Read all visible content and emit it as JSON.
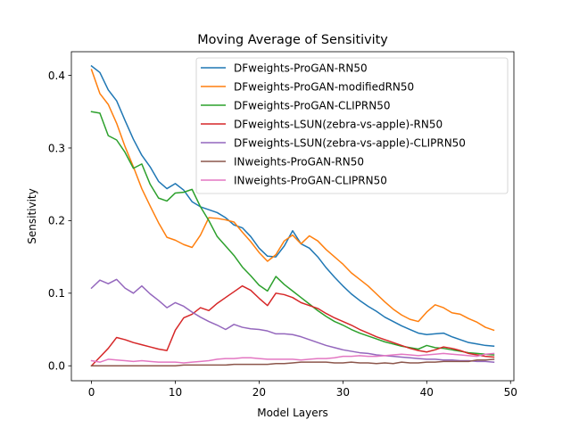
{
  "chart_data": {
    "type": "line",
    "title": "Moving Average of Sensitivity",
    "xlabel": "Model Layers",
    "ylabel": "Sensitivity",
    "xlim": [
      -2.4,
      50.4
    ],
    "ylim": [
      -0.0206,
      0.4326
    ],
    "xticks": [
      0,
      10,
      20,
      30,
      40,
      50
    ],
    "xtick_labels": [
      "0",
      "10",
      "20",
      "30",
      "40",
      "50"
    ],
    "yticks": [
      0.0,
      0.1,
      0.2,
      0.3,
      0.4
    ],
    "ytick_labels": [
      "0.0",
      "0.1",
      "0.2",
      "0.3",
      "0.4"
    ],
    "legend_position": "top-right",
    "grid": false,
    "series": [
      {
        "name": "DFweights-ProGAN-RN50",
        "color": "#1f77b4",
        "x": [
          0,
          1,
          2,
          3,
          4,
          5,
          6,
          7,
          8,
          9,
          10,
          11,
          12,
          13,
          14,
          15,
          16,
          17,
          18,
          19,
          20,
          21,
          22,
          23,
          24,
          25,
          26,
          27,
          28,
          29,
          30,
          31,
          32,
          33,
          34,
          35,
          36,
          37,
          38,
          39,
          40,
          41,
          42,
          43,
          44,
          45,
          46,
          47,
          48
        ],
        "y": [
          0.413,
          0.404,
          0.38,
          0.365,
          0.338,
          0.312,
          0.29,
          0.274,
          0.254,
          0.244,
          0.251,
          0.242,
          0.226,
          0.219,
          0.215,
          0.211,
          0.204,
          0.194,
          0.19,
          0.178,
          0.162,
          0.151,
          0.15,
          0.165,
          0.186,
          0.168,
          0.162,
          0.15,
          0.135,
          0.122,
          0.11,
          0.099,
          0.09,
          0.082,
          0.075,
          0.067,
          0.061,
          0.055,
          0.05,
          0.045,
          0.043,
          0.044,
          0.045,
          0.04,
          0.036,
          0.032,
          0.03,
          0.028,
          0.027
        ]
      },
      {
        "name": "DFweights-ProGAN-modifiedRN50",
        "color": "#ff7f0e",
        "x": [
          0,
          1,
          2,
          3,
          4,
          5,
          6,
          7,
          8,
          9,
          10,
          11,
          12,
          13,
          14,
          15,
          16,
          17,
          18,
          19,
          20,
          21,
          22,
          23,
          24,
          25,
          26,
          27,
          28,
          29,
          30,
          31,
          32,
          33,
          34,
          35,
          36,
          37,
          38,
          39,
          40,
          41,
          42,
          43,
          44,
          45,
          46,
          47,
          48
        ],
        "y": [
          0.408,
          0.375,
          0.36,
          0.334,
          0.302,
          0.274,
          0.244,
          0.22,
          0.197,
          0.177,
          0.173,
          0.167,
          0.163,
          0.18,
          0.204,
          0.203,
          0.201,
          0.198,
          0.184,
          0.171,
          0.156,
          0.144,
          0.153,
          0.172,
          0.18,
          0.168,
          0.179,
          0.172,
          0.16,
          0.15,
          0.14,
          0.128,
          0.119,
          0.11,
          0.099,
          0.088,
          0.078,
          0.07,
          0.064,
          0.061,
          0.074,
          0.084,
          0.08,
          0.073,
          0.071,
          0.065,
          0.06,
          0.053,
          0.049
        ]
      },
      {
        "name": "DFweights-ProGAN-CLIPRN50",
        "color": "#2ca02c",
        "x": [
          0,
          1,
          2,
          3,
          4,
          5,
          6,
          7,
          8,
          9,
          10,
          11,
          12,
          13,
          14,
          15,
          16,
          17,
          18,
          19,
          20,
          21,
          22,
          23,
          24,
          25,
          26,
          27,
          28,
          29,
          30,
          31,
          32,
          33,
          34,
          35,
          36,
          37,
          38,
          39,
          40,
          41,
          42,
          43,
          44,
          45,
          46,
          47,
          48
        ],
        "y": [
          0.35,
          0.348,
          0.317,
          0.311,
          0.294,
          0.272,
          0.278,
          0.25,
          0.231,
          0.227,
          0.238,
          0.239,
          0.243,
          0.219,
          0.2,
          0.178,
          0.165,
          0.152,
          0.136,
          0.124,
          0.111,
          0.103,
          0.123,
          0.112,
          0.103,
          0.094,
          0.085,
          0.076,
          0.068,
          0.061,
          0.056,
          0.05,
          0.045,
          0.041,
          0.037,
          0.033,
          0.03,
          0.027,
          0.025,
          0.023,
          0.028,
          0.025,
          0.024,
          0.022,
          0.02,
          0.018,
          0.017,
          0.016,
          0.015
        ]
      },
      {
        "name": "DFweights-LSUN(zebra-vs-apple)-RN50",
        "color": "#d62728",
        "x": [
          0,
          1,
          2,
          3,
          4,
          5,
          6,
          7,
          8,
          9,
          10,
          11,
          12,
          13,
          14,
          15,
          16,
          17,
          18,
          19,
          20,
          21,
          22,
          23,
          24,
          25,
          26,
          27,
          28,
          29,
          30,
          31,
          32,
          33,
          34,
          35,
          36,
          37,
          38,
          39,
          40,
          41,
          42,
          43,
          44,
          45,
          46,
          47,
          48
        ],
        "y": [
          0.0,
          0.012,
          0.024,
          0.039,
          0.036,
          0.032,
          0.029,
          0.026,
          0.023,
          0.021,
          0.049,
          0.066,
          0.071,
          0.08,
          0.076,
          0.086,
          0.094,
          0.102,
          0.11,
          0.104,
          0.093,
          0.083,
          0.1,
          0.098,
          0.094,
          0.087,
          0.083,
          0.079,
          0.072,
          0.066,
          0.061,
          0.056,
          0.05,
          0.045,
          0.04,
          0.036,
          0.032,
          0.028,
          0.024,
          0.021,
          0.019,
          0.022,
          0.026,
          0.024,
          0.021,
          0.017,
          0.015,
          0.013,
          0.012
        ]
      },
      {
        "name": "DFweights-LSUN(zebra-vs-apple)-CLIPRN50",
        "color": "#9467bd",
        "x": [
          0,
          1,
          2,
          3,
          4,
          5,
          6,
          7,
          8,
          9,
          10,
          11,
          12,
          13,
          14,
          15,
          16,
          17,
          18,
          19,
          20,
          21,
          22,
          23,
          24,
          25,
          26,
          27,
          28,
          29,
          30,
          31,
          32,
          33,
          34,
          35,
          36,
          37,
          38,
          39,
          40,
          41,
          42,
          43,
          44,
          45,
          46,
          47,
          48
        ],
        "y": [
          0.107,
          0.118,
          0.113,
          0.119,
          0.107,
          0.1,
          0.11,
          0.099,
          0.09,
          0.08,
          0.087,
          0.082,
          0.074,
          0.067,
          0.061,
          0.056,
          0.05,
          0.057,
          0.053,
          0.051,
          0.05,
          0.048,
          0.044,
          0.044,
          0.043,
          0.04,
          0.036,
          0.032,
          0.028,
          0.025,
          0.022,
          0.02,
          0.018,
          0.017,
          0.015,
          0.014,
          0.013,
          0.012,
          0.011,
          0.01,
          0.009,
          0.009,
          0.008,
          0.008,
          0.007,
          0.007,
          0.006,
          0.006,
          0.005
        ]
      },
      {
        "name": "INweights-ProGAN-RN50",
        "color": "#8c564b",
        "x": [
          0,
          1,
          2,
          3,
          4,
          5,
          6,
          7,
          8,
          9,
          10,
          11,
          12,
          13,
          14,
          15,
          16,
          17,
          18,
          19,
          20,
          21,
          22,
          23,
          24,
          25,
          26,
          27,
          28,
          29,
          30,
          31,
          32,
          33,
          34,
          35,
          36,
          37,
          38,
          39,
          40,
          41,
          42,
          43,
          44,
          45,
          46,
          47,
          48
        ],
        "y": [
          0.0,
          0.0,
          0.0,
          0.0,
          0.0,
          0.0,
          0.0,
          0.0,
          0.0,
          0.0,
          0.0,
          0.001,
          0.001,
          0.001,
          0.001,
          0.001,
          0.001,
          0.002,
          0.002,
          0.002,
          0.002,
          0.002,
          0.003,
          0.003,
          0.004,
          0.005,
          0.005,
          0.005,
          0.005,
          0.004,
          0.004,
          0.005,
          0.004,
          0.004,
          0.003,
          0.004,
          0.003,
          0.005,
          0.004,
          0.004,
          0.005,
          0.005,
          0.006,
          0.006,
          0.006,
          0.006,
          0.008,
          0.008,
          0.009
        ]
      },
      {
        "name": "INweights-ProGAN-CLIPRN50",
        "color": "#e377c2",
        "x": [
          0,
          1,
          2,
          3,
          4,
          5,
          6,
          7,
          8,
          9,
          10,
          11,
          12,
          13,
          14,
          15,
          16,
          17,
          18,
          19,
          20,
          21,
          22,
          23,
          24,
          25,
          26,
          27,
          28,
          29,
          30,
          31,
          32,
          33,
          34,
          35,
          36,
          37,
          38,
          39,
          40,
          41,
          42,
          43,
          44,
          45,
          46,
          47,
          48
        ],
        "y": [
          0.007,
          0.005,
          0.009,
          0.008,
          0.007,
          0.006,
          0.007,
          0.006,
          0.005,
          0.005,
          0.005,
          0.004,
          0.005,
          0.006,
          0.007,
          0.009,
          0.01,
          0.01,
          0.011,
          0.011,
          0.01,
          0.009,
          0.009,
          0.009,
          0.009,
          0.008,
          0.009,
          0.01,
          0.01,
          0.011,
          0.013,
          0.013,
          0.014,
          0.013,
          0.013,
          0.014,
          0.015,
          0.016,
          0.015,
          0.014,
          0.015,
          0.016,
          0.017,
          0.016,
          0.015,
          0.014,
          0.013,
          0.016,
          0.017
        ]
      }
    ]
  }
}
